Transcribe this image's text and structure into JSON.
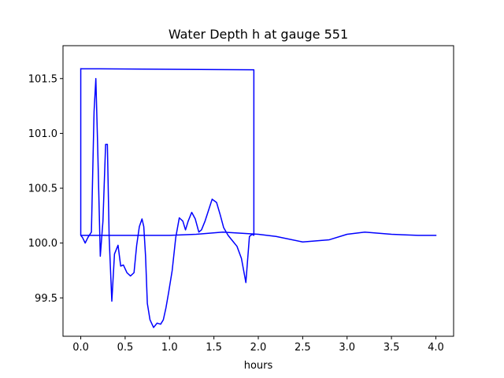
{
  "chart_data": {
    "type": "line",
    "title": "Water Depth h at gauge 551",
    "xlabel": "hours",
    "ylabel": "",
    "xlim": [
      -0.2,
      4.2
    ],
    "ylim": [
      99.15,
      101.8
    ],
    "xticks": [
      0.0,
      0.5,
      1.0,
      1.5,
      2.0,
      2.5,
      3.0,
      3.5,
      4.0
    ],
    "xtick_labels": [
      "0.0",
      "0.5",
      "1.0",
      "1.5",
      "2.0",
      "2.5",
      "3.0",
      "3.5",
      "4.0"
    ],
    "yticks": [
      99.5,
      100.0,
      100.5,
      101.0,
      101.5
    ],
    "ytick_labels": [
      "99.5",
      "100.0",
      "100.5",
      "101.0",
      "101.5"
    ],
    "grid": false,
    "series": [
      {
        "color": "#0000ff",
        "x": [
          0.0,
          0.0,
          0.02,
          0.05,
          0.08,
          0.12,
          0.15,
          0.17,
          0.19,
          0.22,
          0.25,
          0.28,
          0.3,
          0.32,
          0.35,
          0.38,
          0.42,
          0.45,
          0.48,
          0.52,
          0.56,
          0.6,
          0.63,
          0.66,
          0.69,
          0.71,
          0.73,
          0.75,
          0.78,
          0.82,
          0.86,
          0.9,
          0.93,
          0.96,
          0.99,
          1.03,
          1.07,
          1.11,
          1.15,
          1.18,
          1.21,
          1.25,
          1.29,
          1.33,
          1.36,
          1.4,
          1.44,
          1.48,
          1.53,
          1.57,
          1.61,
          1.66,
          1.71,
          1.76,
          1.81,
          1.86,
          1.9,
          1.93,
          1.95,
          1.95,
          1.95,
          0.0,
          0.0,
          0.5,
          1.0,
          1.3,
          1.6,
          1.8,
          2.0,
          2.2,
          2.5,
          2.8,
          3.0,
          3.2,
          3.5,
          3.8,
          4.0
        ],
        "y": [
          101.59,
          100.07,
          100.05,
          100.0,
          100.05,
          100.1,
          101.2,
          101.5,
          100.9,
          99.88,
          100.2,
          100.9,
          100.9,
          100.05,
          99.47,
          99.9,
          99.98,
          99.79,
          99.8,
          99.73,
          99.7,
          99.73,
          99.98,
          100.15,
          100.22,
          100.15,
          99.88,
          99.45,
          99.3,
          99.23,
          99.27,
          99.26,
          99.3,
          99.41,
          99.55,
          99.75,
          100.05,
          100.23,
          100.2,
          100.12,
          100.2,
          100.28,
          100.22,
          100.1,
          100.12,
          100.2,
          100.3,
          100.4,
          100.37,
          100.26,
          100.14,
          100.07,
          100.02,
          99.97,
          99.86,
          99.64,
          100.06,
          100.08,
          100.07,
          101.58,
          101.58,
          101.59,
          100.07,
          100.07,
          100.07,
          100.08,
          100.1,
          100.09,
          100.08,
          100.06,
          100.01,
          100.03,
          100.08,
          100.1,
          100.08,
          100.07,
          100.07
        ]
      }
    ]
  }
}
